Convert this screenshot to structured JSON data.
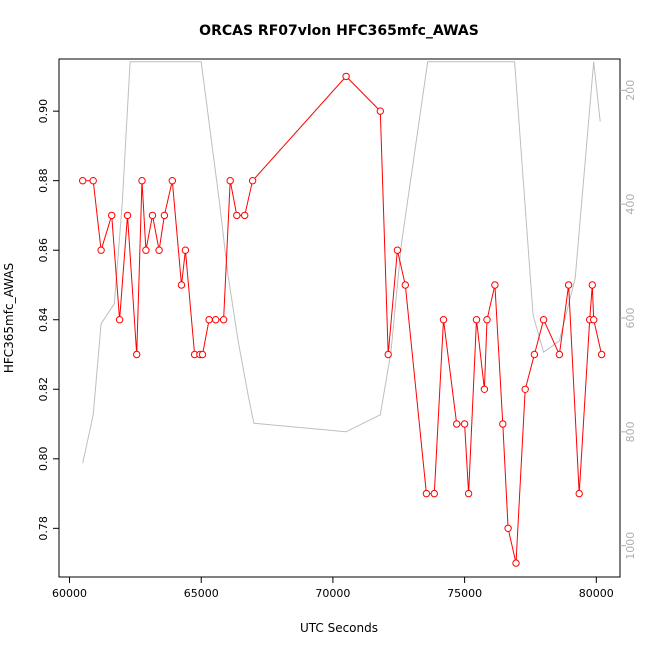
{
  "chart_data": {
    "type": "line",
    "title": "ORCAS RF07vlon HFC365mfc_AWAS",
    "xlabel": "UTC Seconds",
    "ylabel": "HFC365mfc_AWAS",
    "xlim": [
      59600,
      80900
    ],
    "ylim": [
      0.766,
      0.915
    ],
    "y2lim": [
      1055,
      145
    ],
    "x_ticks": [
      60000,
      65000,
      70000,
      75000,
      80000
    ],
    "y_ticks": [
      0.78,
      0.8,
      0.82,
      0.84,
      0.86,
      0.88,
      0.9
    ],
    "y2_ticks": [
      200,
      400,
      600,
      800,
      1000
    ],
    "colors": {
      "series": "#ff0000",
      "altitude": "#bebebe"
    },
    "series": [
      {
        "x": [
          60500,
          60900,
          61200,
          61600,
          61900,
          62200,
          62550,
          62750,
          62900,
          63150,
          63400,
          63600,
          63900,
          64250,
          64400,
          64750,
          64950,
          65050,
          65300,
          65550,
          65850,
          66100,
          66350,
          66650,
          66950,
          70500,
          71800,
          72100,
          72450,
          72750,
          73550,
          73850,
          74200,
          74700,
          75000,
          75150,
          75450,
          75750,
          75850,
          76150,
          76450,
          76650,
          76950,
          77300,
          77650,
          78000,
          78600,
          78950,
          79350,
          79750,
          79850,
          79900,
          80200
        ],
        "y": [
          0.88,
          0.88,
          0.86,
          0.87,
          0.84,
          0.87,
          0.83,
          0.88,
          0.86,
          0.87,
          0.86,
          0.87,
          0.88,
          0.85,
          0.86,
          0.83,
          0.83,
          0.83,
          0.84,
          0.84,
          0.84,
          0.88,
          0.87,
          0.87,
          0.88,
          0.91,
          0.9,
          0.83,
          0.86,
          0.85,
          0.79,
          0.79,
          0.84,
          0.81,
          0.81,
          0.79,
          0.84,
          0.82,
          0.84,
          0.85,
          0.81,
          0.78,
          0.77,
          0.82,
          0.83,
          0.84,
          0.83,
          0.85,
          0.79,
          0.84,
          0.85,
          0.84,
          0.83
        ]
      },
      {
        "axis": "right",
        "x": [
          60500,
          60900,
          61200,
          61700,
          62000,
          62300,
          65000,
          65700,
          66000,
          66400,
          66800,
          67000,
          70500,
          71800,
          72200,
          72600,
          73600,
          76900,
          77600,
          78000,
          78600,
          79200,
          79900,
          80150
        ],
        "y": [
          855,
          770,
          610,
          575,
          400,
          150,
          150,
          400,
          520,
          640,
          740,
          785,
          800,
          770,
          660,
          470,
          150,
          150,
          595,
          660,
          640,
          530,
          150,
          255
        ]
      }
    ]
  }
}
